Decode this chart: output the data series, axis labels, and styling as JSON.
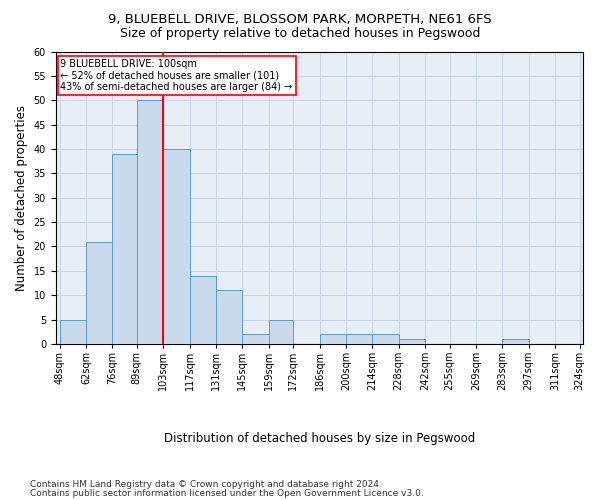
{
  "title": "9, BLUEBELL DRIVE, BLOSSOM PARK, MORPETH, NE61 6FS",
  "subtitle": "Size of property relative to detached houses in Pegswood",
  "xlabel": "Distribution of detached houses by size in Pegswood",
  "ylabel": "Number of detached properties",
  "bar_edges": [
    48,
    62,
    76,
    89,
    103,
    117,
    131,
    145,
    159,
    172,
    186,
    200,
    214,
    228,
    242,
    255,
    269,
    283,
    297,
    311,
    324
  ],
  "bar_heights": [
    5,
    21,
    39,
    50,
    40,
    14,
    11,
    2,
    5,
    0,
    2,
    2,
    2,
    1,
    0,
    0,
    0,
    1,
    0,
    0
  ],
  "bar_color": "#c9daea",
  "bar_edge_color": "#5b9bd5",
  "ref_line_x": 103,
  "ref_line_color": "red",
  "annotation_text": "9 BLUEBELL DRIVE: 100sqm\n← 52% of detached houses are smaller (101)\n43% of semi-detached houses are larger (84) →",
  "annotation_box_color": "red",
  "ylim": [
    0,
    60
  ],
  "yticks": [
    0,
    5,
    10,
    15,
    20,
    25,
    30,
    35,
    40,
    45,
    50,
    55,
    60
  ],
  "footnote1": "Contains HM Land Registry data © Crown copyright and database right 2024.",
  "footnote2": "Contains public sector information licensed under the Open Government Licence v3.0.",
  "title_fontsize": 9.5,
  "subtitle_fontsize": 9,
  "tick_label_fontsize": 7,
  "axis_label_fontsize": 8.5,
  "xlabel_fontsize": 8.5,
  "footnote_fontsize": 6.5
}
